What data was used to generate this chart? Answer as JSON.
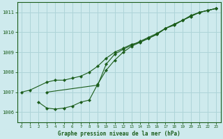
{
  "title": "Graphe pression niveau de la mer (hPa)",
  "bg_color": "#ceeaed",
  "grid_color": "#aed4d8",
  "line_color": "#1a5c1a",
  "x_values": [
    0,
    1,
    2,
    3,
    4,
    5,
    6,
    7,
    8,
    9,
    10,
    11,
    12,
    13,
    14,
    15,
    16,
    17,
    18,
    19,
    20,
    21,
    22,
    23
  ],
  "line1": [
    1007.0,
    1007.1,
    null,
    1007.5,
    1007.6,
    1007.6,
    1007.7,
    1007.8,
    1008.0,
    1008.3,
    1008.7,
    1009.0,
    1009.2,
    1009.4,
    1009.5,
    1009.7,
    1009.9,
    1010.2,
    1010.4,
    1010.6,
    1010.8,
    1011.0,
    1011.1,
    1011.2
  ],
  "line2": [
    null,
    null,
    1006.5,
    1006.2,
    1006.15,
    1006.2,
    1006.3,
    1006.5,
    1006.6,
    1007.4,
    1008.1,
    1008.6,
    1009.0,
    1009.3,
    1009.5,
    1009.7,
    1009.9,
    1010.2,
    1010.4,
    1010.6,
    1010.8,
    1011.0,
    1011.1,
    1011.2
  ],
  "line3": [
    null,
    null,
    null,
    1007.0,
    null,
    null,
    null,
    null,
    null,
    1007.35,
    1008.4,
    1008.9,
    1009.15,
    1009.35,
    1009.55,
    1009.75,
    1009.95,
    1010.2,
    1010.35,
    1010.6,
    1010.85,
    1011.0,
    1011.1,
    1011.2
  ],
  "ylim": [
    1005.5,
    1011.5
  ],
  "yticks": [
    1006,
    1007,
    1008,
    1009,
    1010,
    1011
  ],
  "xlim": [
    -0.5,
    23.5
  ],
  "xticks": [
    0,
    1,
    2,
    3,
    4,
    5,
    6,
    7,
    8,
    9,
    10,
    11,
    12,
    13,
    14,
    15,
    16,
    17,
    18,
    19,
    20,
    21,
    22,
    23
  ],
  "figsize": [
    3.2,
    2.0
  ],
  "dpi": 100
}
